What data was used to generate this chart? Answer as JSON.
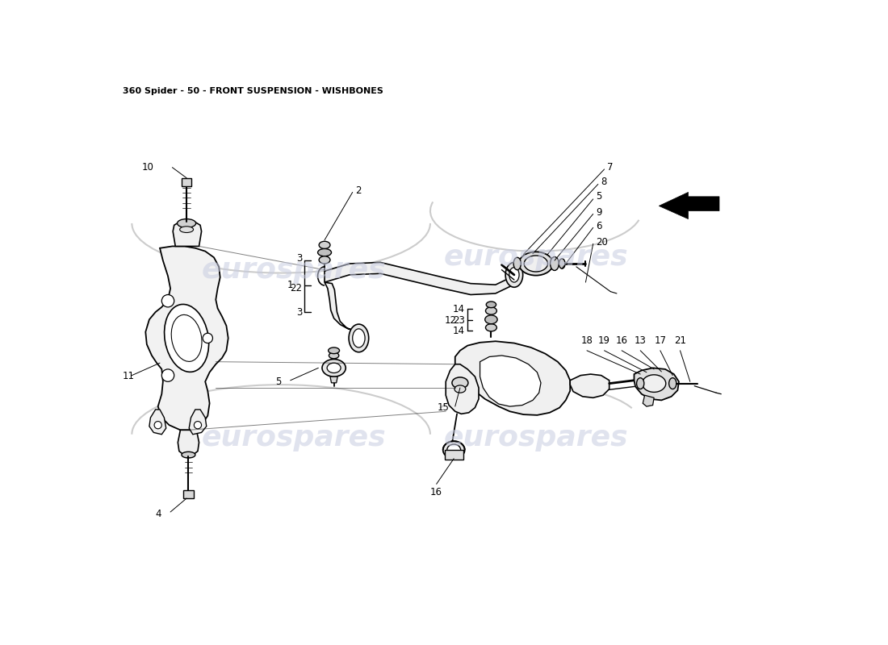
{
  "title": "360 Spider - 50 - FRONT SUSPENSION - WISHBONES",
  "bg_color": "#ffffff",
  "watermark": "eurospares",
  "title_fontsize": 8,
  "title_color": "#000000",
  "label_fontsize": 8.5,
  "wm_color": "#c8cce0",
  "wm_alpha": 0.55,
  "line_color": "#000000",
  "lw_main": 1.2,
  "lw_thin": 0.7,
  "lw_leader": 0.7
}
